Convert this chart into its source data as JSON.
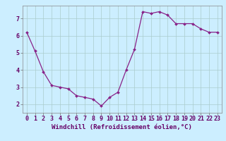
{
  "x": [
    0,
    1,
    2,
    3,
    4,
    5,
    6,
    7,
    8,
    9,
    10,
    11,
    12,
    13,
    14,
    15,
    16,
    17,
    18,
    19,
    20,
    21,
    22,
    23
  ],
  "y": [
    6.2,
    5.1,
    3.9,
    3.1,
    3.0,
    2.9,
    2.5,
    2.4,
    2.3,
    1.9,
    2.4,
    2.7,
    4.0,
    5.2,
    7.4,
    7.3,
    7.4,
    7.2,
    6.7,
    6.7,
    6.7,
    6.4,
    6.2,
    6.2
  ],
  "line_color": "#882288",
  "marker": "D",
  "markersize": 2.0,
  "linewidth": 0.9,
  "bg_color": "#cceeff",
  "grid_color": "#aacccc",
  "xlabel": "Windchill (Refroidissement éolien,°C)",
  "xlabel_fontsize": 6.5,
  "tick_fontsize": 6.0,
  "ylim": [
    1.5,
    7.75
  ],
  "xlim": [
    -0.5,
    23.5
  ],
  "yticks": [
    2,
    3,
    4,
    5,
    6,
    7
  ],
  "xticks": [
    0,
    1,
    2,
    3,
    4,
    5,
    6,
    7,
    8,
    9,
    10,
    11,
    12,
    13,
    14,
    15,
    16,
    17,
    18,
    19,
    20,
    21,
    22,
    23
  ]
}
